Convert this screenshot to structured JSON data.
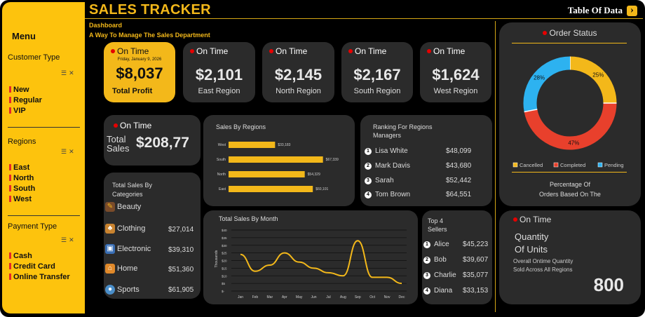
{
  "app": {
    "title": "SALES TRACKER",
    "table_of_data": "Table Of Data",
    "subtitle": "Dashboard",
    "tagline": "A Way To Manage The Sales Department"
  },
  "sidebar": {
    "menu": "Menu",
    "customer_type": {
      "heading": "Customer Type",
      "items": [
        "New",
        "Regular",
        "VIP"
      ]
    },
    "regions": {
      "heading": "Regions",
      "items": [
        "East",
        "North",
        "South",
        "West"
      ]
    },
    "payment_type": {
      "heading": "Payment Type",
      "items": [
        "Cash",
        "Credit Card",
        "Online Transfer"
      ]
    }
  },
  "kpis": [
    {
      "status": "On Time",
      "date": "Friday, January 9, 2026",
      "value": "$8,037",
      "label": "Total Profit"
    },
    {
      "status": "On Time",
      "value": "$2,101",
      "label": "East Region"
    },
    {
      "status": "On Time",
      "value": "$2,145",
      "label": "North Region"
    },
    {
      "status": "On Time",
      "value": "$2,167",
      "label": "South Region"
    },
    {
      "status": "On Time",
      "value": "$1,624",
      "label": "West Region"
    }
  ],
  "total_sales": {
    "status": "On Time",
    "label_line1": "Total",
    "label_line2": "Sales",
    "value": "$208,77"
  },
  "categories": {
    "title_line1": "Total Sales By",
    "title_line2": "Categories",
    "items": [
      {
        "name": "Beauty",
        "value": "",
        "icon": "beauty-icon"
      },
      {
        "name": "Clothing",
        "value": "$27,014",
        "icon": "clothing-icon"
      },
      {
        "name": "Electronic",
        "value": "$39,310",
        "icon": "electronic-icon"
      },
      {
        "name": "Home",
        "value": "$51,360",
        "icon": "home-icon"
      },
      {
        "name": "Sports",
        "value": "$61,905",
        "icon": "sports-icon"
      }
    ]
  },
  "ranking": {
    "title_line1": "Ranking For Regions",
    "title_line2": "Managers",
    "items": [
      {
        "rank": "1",
        "name": "Lisa White",
        "value": "$48,099"
      },
      {
        "rank": "2",
        "name": "Mark Davis",
        "value": "$43,680"
      },
      {
        "rank": "3",
        "name": "Sarah",
        "value": "$52,442"
      },
      {
        "rank": "4",
        "name": "Tom Brown",
        "value": "$64,551"
      }
    ]
  },
  "sellers": {
    "title_line1": "Top 4",
    "title_line2": "Sellers",
    "items": [
      {
        "rank": "1",
        "name": "Alice",
        "value": "$45,223"
      },
      {
        "rank": "2",
        "name": "Bob",
        "value": "$39,607"
      },
      {
        "rank": "3",
        "name": "Charlie",
        "value": "$35,077"
      },
      {
        "rank": "4",
        "name": "Diana",
        "value": "$33,153"
      }
    ]
  },
  "order_status": {
    "title": "Order Status",
    "caption_line1": "Percentage Of",
    "caption_line2": "Orders Based On The"
  },
  "units": {
    "status": "On Time",
    "title_line1": "Quantity",
    "title_line2": "Of Units",
    "desc_line1": "Overall Ontime Quantity",
    "desc_line2": "Sold Across All Regions",
    "value": "800"
  },
  "colors": {
    "accent": "#f3b81a",
    "card": "#2b2b2b",
    "cancelled": "#f3b81a",
    "completed": "#e8402c",
    "pending": "#2db2f0"
  },
  "chart_data": [
    {
      "type": "bar",
      "title": "Sales By Regions",
      "orientation": "horizontal",
      "categories": [
        "West",
        "South",
        "North",
        "East"
      ],
      "values": [
        33183,
        67339,
        54329,
        60101
      ],
      "data_labels": [
        "$33,183",
        "$67,339",
        "$54,329",
        "$60,101"
      ],
      "xlim": [
        0,
        80000
      ]
    },
    {
      "type": "line",
      "title": "Total Sales By Month",
      "ylabel": "Thousands",
      "categories": [
        "Jan",
        "Feb",
        "Mar",
        "Apr",
        "May",
        "Jun",
        "Jul",
        "Aug",
        "Sep",
        "Oct",
        "Nov",
        "Dec"
      ],
      "values": [
        24,
        13,
        17,
        25,
        19,
        15,
        12,
        10,
        33,
        9,
        9,
        5
      ],
      "ylim": [
        0,
        40
      ],
      "y_ticks": [
        "$-",
        "$5",
        "$10",
        "$15",
        "$20",
        "$25",
        "$30",
        "$35",
        "$40"
      ],
      "grid": true
    },
    {
      "type": "pie",
      "donut": true,
      "categories": [
        "Cancelled",
        "Completed",
        "Pending"
      ],
      "values": [
        25,
        47,
        28
      ],
      "data_labels": [
        "25%",
        "47%",
        "28%"
      ],
      "legend": "bottom"
    }
  ]
}
